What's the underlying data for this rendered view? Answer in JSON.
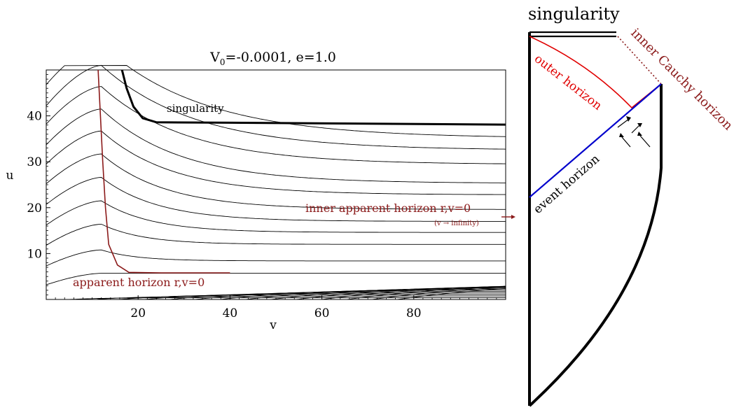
{
  "left_plot": {
    "title_prefix": "V",
    "title_sub": "0",
    "title_rest": "=-0.0001, e=1.0",
    "xlabel": "v",
    "ylabel": "u",
    "x_ticks": [
      "20",
      "40",
      "60",
      "80"
    ],
    "y_ticks": [
      "10",
      "20",
      "30",
      "40"
    ],
    "singularity_label": "singularity",
    "apparent_horizon_label": "apparent horizon r,v=0",
    "inner_apparent_label": "inner apparent horizon r,v=0",
    "inner_apparent_sub": "(v → infinity)",
    "colors": {
      "curves": "#000000",
      "horizon": "#8b1a1a",
      "axis": "#000000"
    }
  },
  "penrose": {
    "singularity_label": "singularity",
    "inner_cauchy_label": "inner Cauchy horizon",
    "outer_horizon_label": "outer horizon",
    "event_horizon_label": "event horizon",
    "colors": {
      "outer": "#e00000",
      "event": "#0000cc",
      "cauchy": "#8b1a1a",
      "boundary": "#000000"
    }
  }
}
